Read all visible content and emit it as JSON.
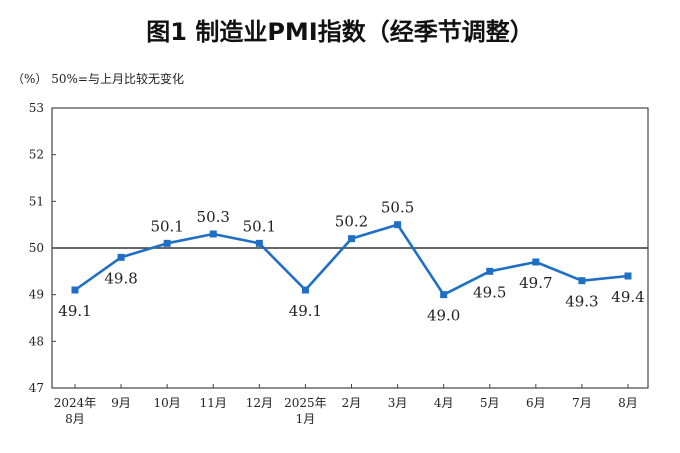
{
  "chart_data": {
    "type": "line",
    "title": "图1  制造业PMI指数（经季节调整）",
    "ylabel": "（%） 50%=与上月比较无变化",
    "ylim": [
      47,
      53
    ],
    "yticks": [
      47,
      48,
      49,
      50,
      51,
      52,
      53
    ],
    "reference_line": 50,
    "grid": false,
    "categories": [
      [
        "2024年",
        "8月"
      ],
      [
        "9月"
      ],
      [
        "10月"
      ],
      [
        "11月"
      ],
      [
        "12月"
      ],
      [
        "2025年",
        "1月"
      ],
      [
        "2月"
      ],
      [
        "3月"
      ],
      [
        "4月"
      ],
      [
        "5月"
      ],
      [
        "6月"
      ],
      [
        "7月"
      ],
      [
        "8月"
      ]
    ],
    "values": [
      49.1,
      49.8,
      50.1,
      50.3,
      50.1,
      49.1,
      50.2,
      50.5,
      49.0,
      49.5,
      49.7,
      49.3,
      49.4
    ],
    "data_labels": [
      "49.1",
      "49.8",
      "50.1",
      "50.3",
      "50.1",
      "49.1",
      "50.2",
      "50.5",
      "49.0",
      "49.5",
      "49.7",
      "49.3",
      "49.4"
    ],
    "label_position": [
      "below",
      "below",
      "above",
      "above",
      "above",
      "below",
      "above",
      "above",
      "below",
      "below",
      "below",
      "below",
      "below"
    ],
    "colors": {
      "line": "#1f6fc4",
      "marker": "#1f6fc4",
      "reference": "#333333",
      "axis": "#444444"
    }
  }
}
